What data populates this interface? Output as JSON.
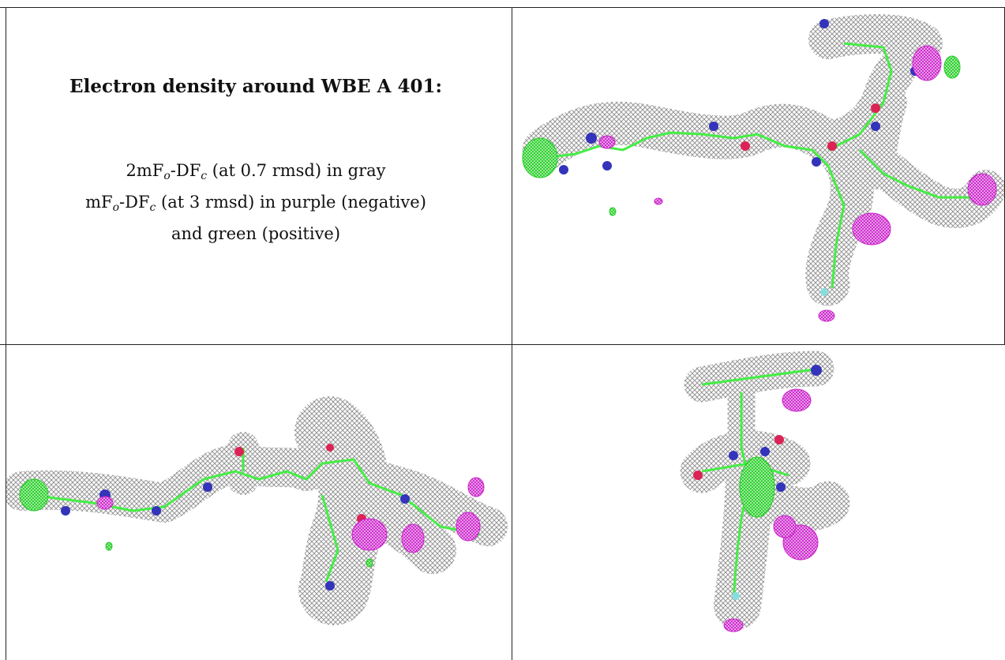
{
  "caption": {
    "title": "Electron density around WBE A 401:",
    "line1": {
      "pre": "2mF",
      "sub1": "o",
      "mid": "-DF",
      "sub2": "c",
      "post": " (at 0.7 rmsd) in gray"
    },
    "line2": {
      "pre": "mF",
      "sub1": "o",
      "mid": "-DF",
      "sub2": "c",
      "post": " (at 3 rmsd) in purple (negative)"
    },
    "line3": "and green (positive)"
  },
  "colors": {
    "mesh_gray": "#8a8a8a",
    "negative_purple": "#cc22cc",
    "positive_green": "#22dd22",
    "stick_green": "#44ee44",
    "nitrogen_blue": "#3333bb",
    "oxygen_red": "#dd2255",
    "fluorine_cyan": "#88dddd",
    "border": "#222222"
  },
  "panels": [
    {
      "id": "view-top-right",
      "icon": "electron-density-map"
    },
    {
      "id": "view-bottom-left",
      "icon": "electron-density-map"
    },
    {
      "id": "view-bottom-right",
      "icon": "electron-density-map"
    }
  ]
}
